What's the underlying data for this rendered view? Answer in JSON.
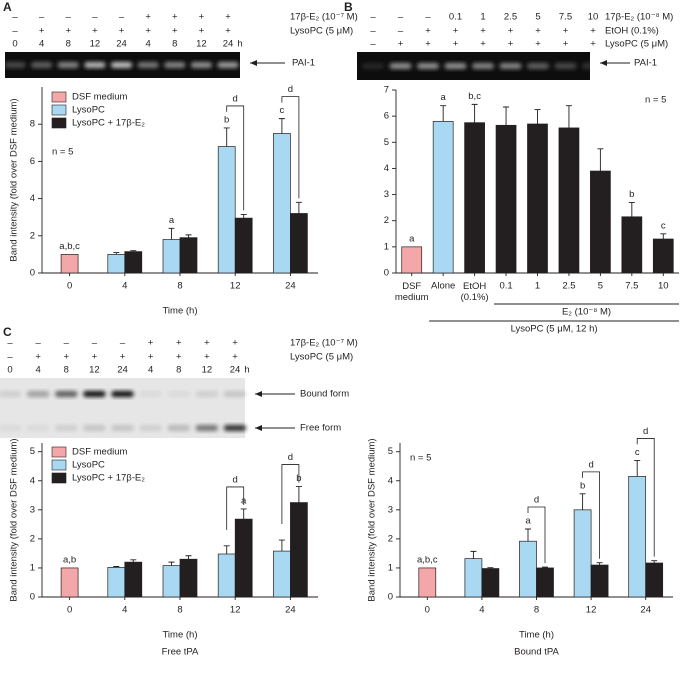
{
  "chart_data": [
    {
      "type": "bar",
      "panel": "A",
      "gel": {
        "rows": [
          {
            "label": "17β-E₂ (10⁻⁷ M)",
            "cells": [
              "–",
              "–",
              "–",
              "–",
              "–",
              "+",
              "+",
              "+",
              "+"
            ]
          },
          {
            "label": "LysoPC (5 μM)",
            "cells": [
              "–",
              "+",
              "+",
              "+",
              "+",
              "+",
              "+",
              "+",
              "+"
            ]
          }
        ],
        "lanes": [
          "0",
          "4",
          "8",
          "12",
          "24",
          "4",
          "8",
          "12",
          "24"
        ],
        "lane_unit": "h",
        "bands": [
          "PAI-1"
        ]
      },
      "categories": [
        "0",
        "4",
        "8",
        "12",
        "24"
      ],
      "series": [
        {
          "name": "DSF medium",
          "color": "#f4a7a8",
          "values": [
            1,
            null,
            null,
            null,
            null
          ],
          "errors": [
            0,
            null,
            null,
            null,
            null
          ]
        },
        {
          "name": "LysoPC",
          "color": "#a9d8f2",
          "values": [
            null,
            1.0,
            1.8,
            6.8,
            7.5
          ],
          "errors": [
            null,
            0.1,
            0.6,
            1.0,
            0.8
          ]
        },
        {
          "name": "LysoPC + 17β-E₂",
          "color": "#231f20",
          "values": [
            null,
            1.15,
            1.9,
            2.95,
            3.2
          ],
          "errors": [
            null,
            0.05,
            0.15,
            0.2,
            0.6
          ]
        }
      ],
      "letters": [
        {
          "text": "a,b,c",
          "category": 0,
          "series": 0
        },
        {
          "text": "a",
          "category": 2,
          "series": 1
        },
        {
          "text": "b",
          "category": 3,
          "series": 1
        },
        {
          "text": "c",
          "category": 4,
          "series": 1
        }
      ],
      "brackets": [
        {
          "text": "d",
          "category": 3
        },
        {
          "text": "d",
          "category": 4
        }
      ],
      "note": "n = 5",
      "ylabel": "Band intensity (fold over DSF medium)",
      "xlabel": "Time (h)",
      "ylim": [
        0,
        10
      ],
      "yticks": [
        0,
        2,
        4,
        6,
        8
      ]
    },
    {
      "type": "bar",
      "panel": "B",
      "gel": {
        "rows": [
          {
            "label": "17β-E₂ (10⁻⁸ M)",
            "cells": [
              "–",
              "–",
              "–",
              "0.1",
              "1",
              "2.5",
              "5",
              "7.5",
              "10"
            ]
          },
          {
            "label": "EtOH (0.1%)",
            "cells": [
              "–",
              "–",
              "+",
              "+",
              "+",
              "+",
              "+",
              "+",
              "+"
            ]
          },
          {
            "label": "LysoPC (5 μM)",
            "cells": [
              "–",
              "+",
              "+",
              "+",
              "+",
              "+",
              "+",
              "+",
              "+"
            ]
          }
        ],
        "bands": [
          "PAI-1"
        ]
      },
      "categories": [
        "DSF medium",
        "Alone",
        "EtOH (0.1%)",
        "0.1",
        "1",
        "2.5",
        "5",
        "7.5",
        "10"
      ],
      "values": [
        1,
        5.8,
        5.75,
        5.65,
        5.7,
        5.55,
        3.9,
        2.15,
        1.3
      ],
      "errors": [
        0,
        0.6,
        0.7,
        0.7,
        0.55,
        0.85,
        0.85,
        0.55,
        0.2
      ],
      "colors": [
        "#f4a7a8",
        "#a9d8f2",
        "#231f20",
        "#231f20",
        "#231f20",
        "#231f20",
        "#231f20",
        "#231f20",
        "#231f20"
      ],
      "letters": [
        {
          "text": "a",
          "category": 0
        },
        {
          "text": "a",
          "category": 1
        },
        {
          "text": "b,c",
          "category": 2
        },
        {
          "text": "b",
          "category": 7
        },
        {
          "text": "c",
          "category": 8
        }
      ],
      "group_labels": [
        "E₂ (10⁻⁸ M)",
        "LysoPC (5 μM, 12 h)"
      ],
      "note": "n = 5",
      "ylim": [
        0,
        7
      ],
      "yticks": [
        0,
        1,
        2,
        3,
        4,
        5,
        6,
        7
      ]
    },
    {
      "type": "bar",
      "panel": "C",
      "gel": {
        "rows": [
          {
            "label": "17β-E₂ (10⁻⁷ M)",
            "cells": [
              "–",
              "–",
              "–",
              "–",
              "–",
              "+",
              "+",
              "+",
              "+"
            ]
          },
          {
            "label": "LysoPC (5 μM)",
            "cells": [
              "–",
              "+",
              "+",
              "+",
              "+",
              "+",
              "+",
              "+",
              "+"
            ]
          }
        ],
        "lanes": [
          "0",
          "4",
          "8",
          "12",
          "24",
          "4",
          "8",
          "12",
          "24"
        ],
        "lane_unit": "h",
        "bands": [
          "Bound form",
          "Free form"
        ]
      },
      "categories": [
        "0",
        "4",
        "8",
        "12",
        "24"
      ],
      "series": [
        {
          "name": "DSF medium",
          "color": "#f4a7a8",
          "values": [
            1,
            null,
            null,
            null,
            null
          ],
          "errors": [
            0,
            null,
            null,
            null,
            null
          ]
        },
        {
          "name": "LysoPC",
          "color": "#a9d8f2",
          "values": [
            null,
            1.02,
            1.08,
            1.48,
            1.58
          ],
          "errors": [
            null,
            0.03,
            0.12,
            0.28,
            0.38
          ]
        },
        {
          "name": "LysoPC + 17β-E₂",
          "color": "#231f20",
          "values": [
            null,
            1.2,
            1.3,
            2.68,
            3.25
          ],
          "errors": [
            null,
            0.08,
            0.12,
            0.35,
            0.55
          ]
        }
      ],
      "letters": [
        {
          "text": "a,b",
          "category": 0,
          "series": 0
        },
        {
          "text": "a",
          "category": 3,
          "series": 2
        },
        {
          "text": "b",
          "category": 4,
          "series": 2
        }
      ],
      "brackets": [
        {
          "text": "d",
          "category": 3
        },
        {
          "text": "d",
          "category": 4
        }
      ],
      "ylabel": "Band intensity (fold over DSF medium)",
      "xlabel": "Time (h)",
      "caption": "Free tPA",
      "ylim": [
        0,
        5.3
      ],
      "yticks": [
        0,
        1,
        2,
        3,
        4,
        5
      ]
    },
    {
      "type": "bar",
      "categories": [
        "0",
        "4",
        "8",
        "12",
        "24"
      ],
      "series": [
        {
          "name": "DSF medium",
          "color": "#f4a7a8",
          "values": [
            1,
            null,
            null,
            null,
            null
          ],
          "errors": [
            0,
            null,
            null,
            null,
            null
          ]
        },
        {
          "name": "LysoPC",
          "color": "#a9d8f2",
          "values": [
            null,
            1.32,
            1.92,
            3.0,
            4.15
          ],
          "errors": [
            null,
            0.25,
            0.42,
            0.55,
            0.55
          ]
        },
        {
          "name": "LysoPC + 17β-E₂",
          "color": "#231f20",
          "values": [
            null,
            0.98,
            1.0,
            1.1,
            1.17
          ],
          "errors": [
            null,
            0.03,
            0.03,
            0.08,
            0.08
          ]
        }
      ],
      "letters": [
        {
          "text": "a,b,c",
          "category": 0,
          "series": 0
        },
        {
          "text": "a",
          "category": 2,
          "series": 1
        },
        {
          "text": "b",
          "category": 3,
          "series": 1
        },
        {
          "text": "c",
          "category": 4,
          "series": 1
        }
      ],
      "brackets": [
        {
          "text": "d",
          "category": 2
        },
        {
          "text": "d",
          "category": 3
        },
        {
          "text": "d",
          "category": 4
        }
      ],
      "note": "n = 5",
      "ylabel": "Band intensity (fold over DSF medium)",
      "xlabel": "Time (h)",
      "caption": "Bound tPA",
      "ylim": [
        0,
        5.3
      ],
      "yticks": [
        0,
        1,
        2,
        3,
        4,
        5
      ]
    }
  ]
}
